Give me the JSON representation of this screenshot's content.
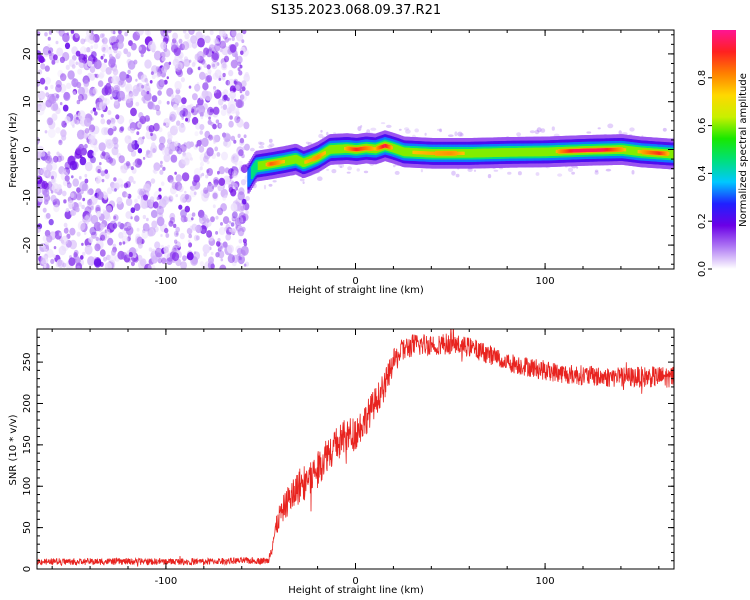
{
  "title": "S135.2023.068.09.37.R21",
  "chart_data": [
    {
      "type": "heatmap",
      "xlabel": "Height of straight line (km)",
      "ylabel": "Frequency (Hz)",
      "xlim": [
        -168,
        168
      ],
      "ylim": [
        -25,
        25
      ],
      "x_ticks": [
        -100,
        0,
        100
      ],
      "x_tick_labels": [
        "-100",
        "0",
        "100"
      ],
      "y_ticks": [
        -20,
        -10,
        0,
        10,
        20
      ],
      "y_tick_labels": [
        "-20",
        "-10",
        "0",
        "10",
        "20"
      ],
      "noise_region_x": [
        -168,
        -57
      ],
      "ridge_center_hz": [
        [
          -57,
          -6
        ],
        [
          -53,
          -3.5
        ],
        [
          -45,
          -3
        ],
        [
          -38,
          -2.5
        ],
        [
          -32,
          -2
        ],
        [
          -28,
          -2.8
        ],
        [
          -24,
          -2.2
        ],
        [
          -20,
          -1.5
        ],
        [
          -14,
          0
        ],
        [
          -5,
          0.2
        ],
        [
          0,
          0
        ],
        [
          5,
          0.3
        ],
        [
          10,
          0.1
        ],
        [
          15,
          0.8
        ],
        [
          20,
          0.2
        ],
        [
          25,
          -0.5
        ],
        [
          40,
          -0.8
        ],
        [
          60,
          -0.8
        ],
        [
          80,
          -0.6
        ],
        [
          100,
          -0.5
        ],
        [
          120,
          -0.2
        ],
        [
          140,
          0
        ],
        [
          150,
          -0.5
        ],
        [
          168,
          -1
        ]
      ],
      "ridge_peak_amplitude": [
        [
          -57,
          0.35
        ],
        [
          -45,
          0.8
        ],
        [
          -35,
          0.65
        ],
        [
          -20,
          0.75
        ],
        [
          -10,
          0.6
        ],
        [
          0,
          0.85
        ],
        [
          10,
          0.7
        ],
        [
          15,
          0.9
        ],
        [
          20,
          0.65
        ],
        [
          30,
          0.7
        ],
        [
          50,
          0.75
        ],
        [
          70,
          0.6
        ],
        [
          90,
          0.55
        ],
        [
          100,
          0.6
        ],
        [
          115,
          0.9
        ],
        [
          130,
          0.9
        ],
        [
          145,
          0.65
        ],
        [
          160,
          0.85
        ],
        [
          168,
          0.6
        ]
      ]
    },
    {
      "type": "line",
      "xlabel": "Height of straight line (km)",
      "ylabel": "SNR (10 * v/v)",
      "xlim": [
        -168,
        168
      ],
      "ylim": [
        0,
        290
      ],
      "x_ticks": [
        -100,
        0,
        100
      ],
      "x_tick_labels": [
        "-100",
        "0",
        "100"
      ],
      "y_ticks": [
        0,
        50,
        100,
        150,
        200,
        250
      ],
      "y_tick_labels": [
        "0",
        "50",
        "100",
        "150",
        "200",
        "250"
      ],
      "series": [
        {
          "color": "#e8231f",
          "points": [
            [
              -168,
              9
            ],
            [
              -140,
              9
            ],
            [
              -110,
              9
            ],
            [
              -80,
              9
            ],
            [
              -60,
              10
            ],
            [
              -46,
              10
            ],
            [
              -44,
              30
            ],
            [
              -40,
              65
            ],
            [
              -35,
              85
            ],
            [
              -30,
              100
            ],
            [
              -25,
              110
            ],
            [
              -20,
              120
            ],
            [
              -15,
              140
            ],
            [
              -10,
              150
            ],
            [
              -5,
              160
            ],
            [
              0,
              165
            ],
            [
              5,
              180
            ],
            [
              10,
              200
            ],
            [
              15,
              220
            ],
            [
              20,
              250
            ],
            [
              25,
              265
            ],
            [
              30,
              270
            ],
            [
              40,
              272
            ],
            [
              50,
              272
            ],
            [
              60,
              268
            ],
            [
              70,
              260
            ],
            [
              80,
              250
            ],
            [
              90,
              245
            ],
            [
              100,
              240
            ],
            [
              110,
              236
            ],
            [
              120,
              234
            ],
            [
              130,
              232
            ],
            [
              140,
              232
            ],
            [
              150,
              232
            ],
            [
              160,
              232
            ],
            [
              168,
              233
            ]
          ],
          "noise_amplitude": [
            [
              -168,
              4
            ],
            [
              -46,
              4
            ],
            [
              -44,
              12
            ],
            [
              -30,
              22
            ],
            [
              0,
              22
            ],
            [
              20,
              15
            ],
            [
              60,
              12
            ],
            [
              100,
              12
            ],
            [
              168,
              13
            ]
          ]
        }
      ]
    }
  ],
  "colorbar": {
    "label": "Normalized spectral amplitude",
    "range": [
      0,
      1
    ],
    "ticks": [
      0.0,
      0.2,
      0.4,
      0.6,
      0.8
    ],
    "tick_labels": [
      "0.0",
      "0.2",
      "0.4",
      "0.6",
      "0.8"
    ],
    "colors": [
      "#ffffff",
      "#b17cf4",
      "#6b00e6",
      "#2020ff",
      "#00c8ff",
      "#00e07a",
      "#18e800",
      "#c8f000",
      "#ffd800",
      "#ff8000",
      "#ff2020",
      "#ff1493"
    ]
  }
}
